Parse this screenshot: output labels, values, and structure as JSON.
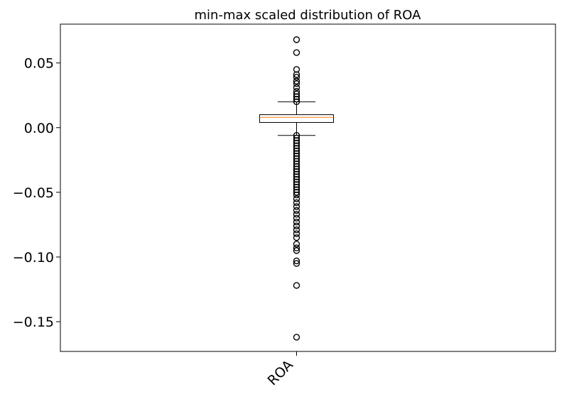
{
  "chart_data": {
    "type": "box",
    "title": "min-max scaled distribution of ROA",
    "xlabel": "",
    "ylabel": "",
    "categories": [
      "ROA"
    ],
    "ylim": [
      -0.173,
      0.08
    ],
    "yticks": [
      0.05,
      0.0,
      -0.05,
      -0.1,
      -0.15
    ],
    "ytick_labels": [
      "0.05",
      "0.00",
      "−0.05",
      "−0.10",
      "−0.15"
    ],
    "grid": false,
    "series": [
      {
        "box": {
          "whisker_high": 0.02,
          "q3": 0.01,
          "median": 0.008,
          "q1": 0.004,
          "whisker_low": -0.006
        },
        "outliers": [
          0.068,
          0.058,
          0.045,
          0.041,
          0.039,
          0.036,
          0.034,
          0.031,
          0.028,
          0.026,
          0.024,
          0.022,
          0.02,
          -0.006,
          -0.008,
          -0.01,
          -0.012,
          -0.014,
          -0.016,
          -0.018,
          -0.02,
          -0.022,
          -0.024,
          -0.026,
          -0.028,
          -0.03,
          -0.032,
          -0.034,
          -0.036,
          -0.038,
          -0.04,
          -0.042,
          -0.044,
          -0.046,
          -0.048,
          -0.05,
          -0.052,
          -0.055,
          -0.058,
          -0.061,
          -0.064,
          -0.067,
          -0.07,
          -0.073,
          -0.076,
          -0.079,
          -0.082,
          -0.085,
          -0.09,
          -0.093,
          -0.095,
          -0.103,
          -0.105,
          -0.122,
          -0.162
        ]
      }
    ],
    "colors": {
      "box": "#000000",
      "median": "#ff7f0e",
      "outlier": "#000000"
    }
  }
}
